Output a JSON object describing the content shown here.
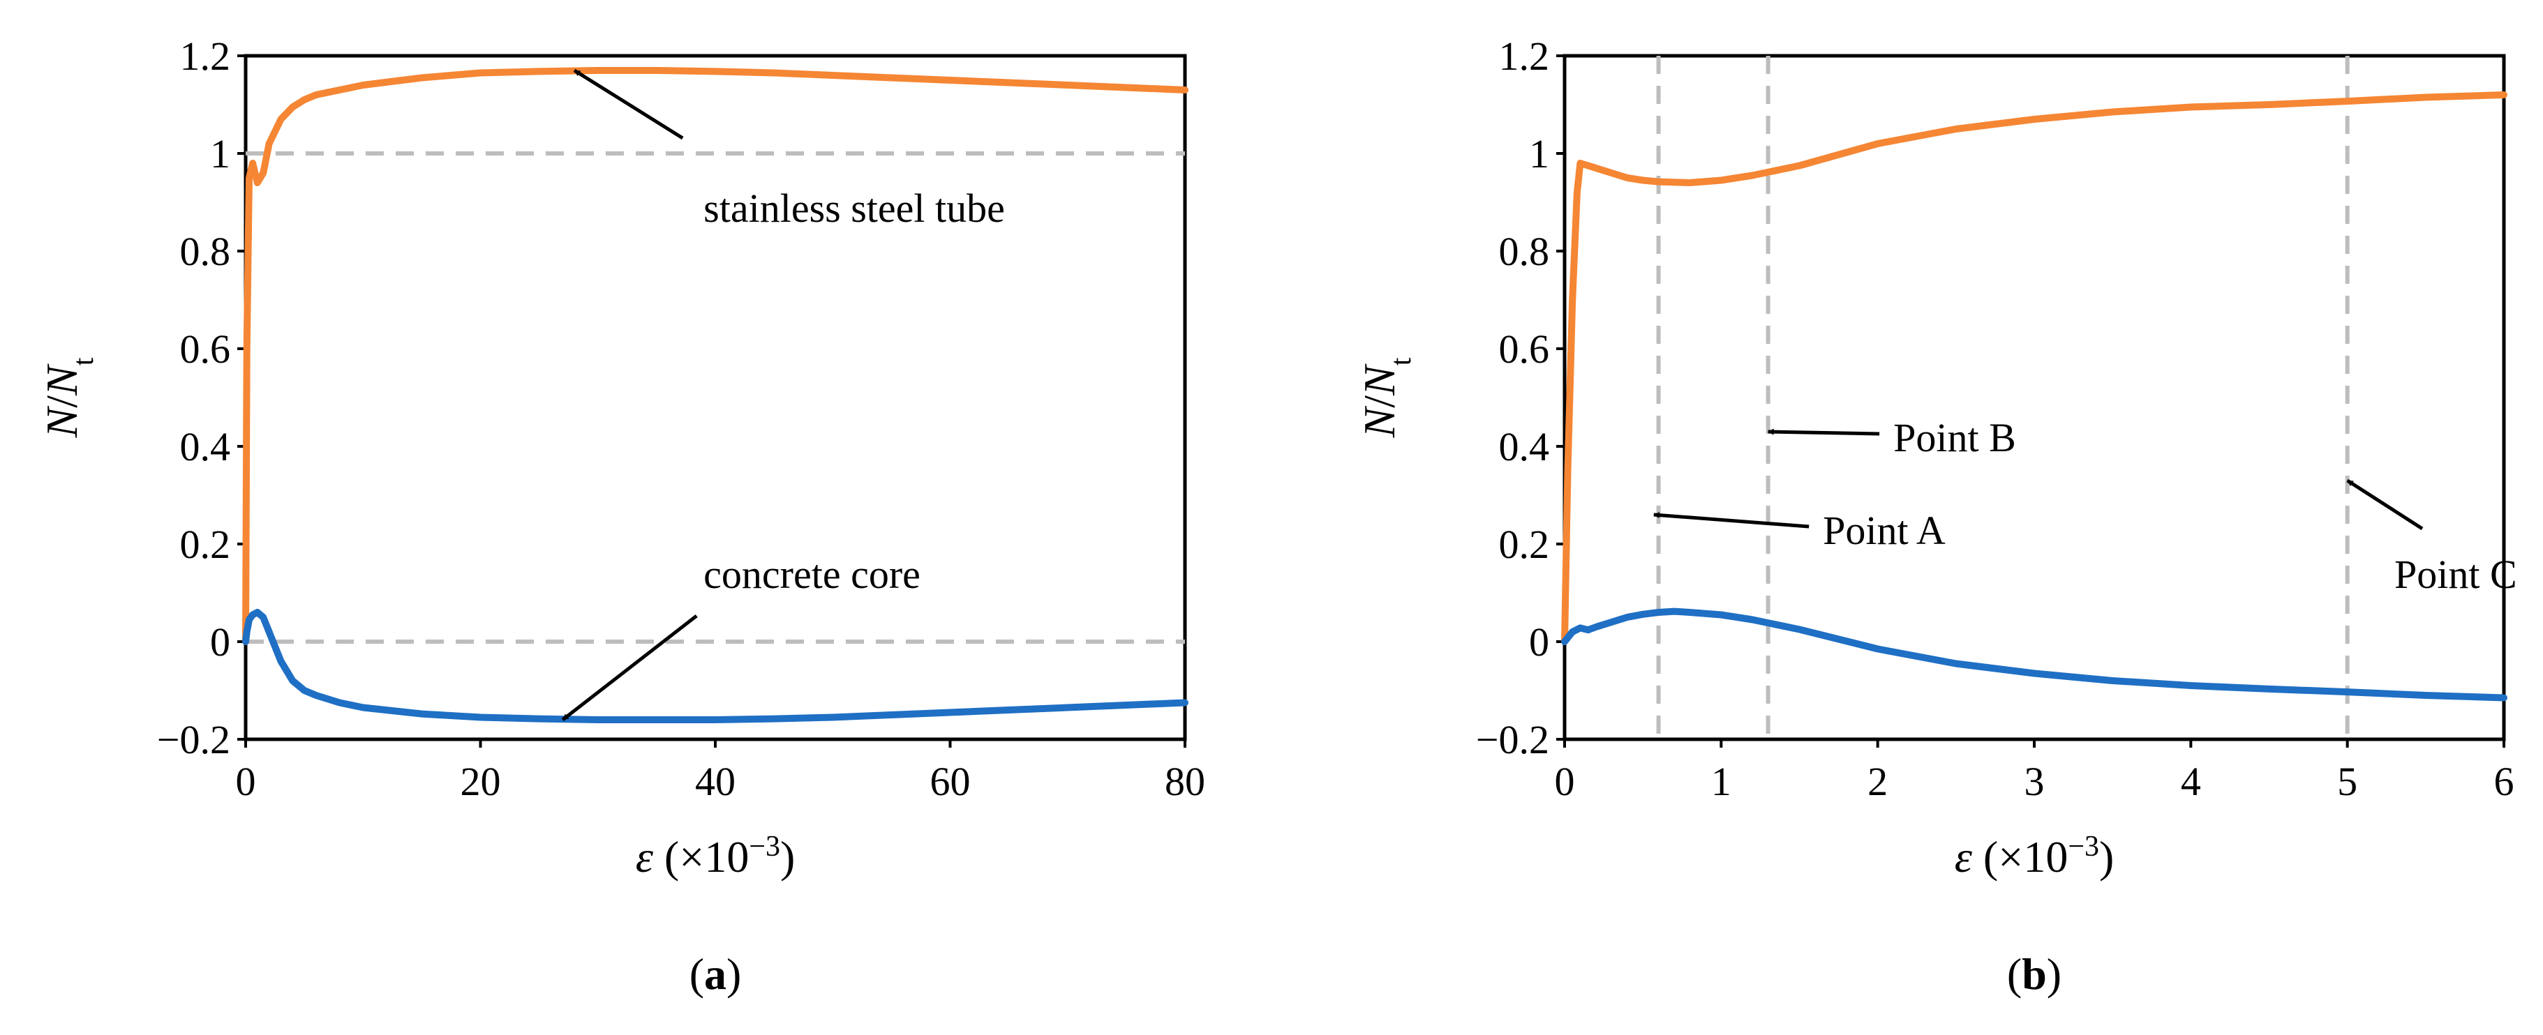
{
  "colors": {
    "steel": "#F58634",
    "concrete": "#1F6FC4",
    "reference": "#BDBDBD",
    "axis": "#000000"
  },
  "chart_data": [
    {
      "type": "line",
      "panel": "(a)",
      "panel_letter": "a",
      "xlabel": "ε (×10−3)",
      "ylabel": "N/Nt",
      "xlim": [
        0,
        80
      ],
      "ylim": [
        -0.2,
        1.2
      ],
      "xticks": [
        0,
        20,
        40,
        60,
        80
      ],
      "yticks": [
        -0.2,
        0,
        0.2,
        0.4,
        0.6,
        0.8,
        1,
        1.2
      ],
      "xtick_labels": [
        "0",
        "20",
        "40",
        "60",
        "80"
      ],
      "ytick_labels": [
        "−0.2",
        "0",
        "0.2",
        "0.4",
        "0.6",
        "0.8",
        "1",
        "1.2"
      ],
      "series": [
        {
          "name": "stainless steel tube",
          "color": "#F58634",
          "x": [
            0,
            0.1,
            0.3,
            0.6,
            1.0,
            1.5,
            2,
            3,
            4,
            5,
            6,
            8,
            10,
            15,
            20,
            25,
            30,
            35,
            40,
            45,
            50,
            55,
            60,
            65,
            70,
            75,
            80
          ],
          "y": [
            0,
            0.6,
            0.95,
            0.98,
            0.94,
            0.96,
            1.02,
            1.07,
            1.095,
            1.11,
            1.12,
            1.13,
            1.14,
            1.155,
            1.165,
            1.168,
            1.17,
            1.17,
            1.168,
            1.165,
            1.16,
            1.155,
            1.15,
            1.145,
            1.14,
            1.135,
            1.13
          ]
        },
        {
          "name": "concrete core",
          "color": "#1F6FC4",
          "x": [
            0,
            0.1,
            0.3,
            0.6,
            1.0,
            1.5,
            2,
            3,
            4,
            5,
            6,
            8,
            10,
            15,
            20,
            25,
            30,
            35,
            40,
            45,
            50,
            55,
            60,
            65,
            70,
            75,
            80
          ],
          "y": [
            0,
            0.02,
            0.045,
            0.055,
            0.06,
            0.05,
            0.02,
            -0.04,
            -0.08,
            -0.1,
            -0.11,
            -0.125,
            -0.135,
            -0.148,
            -0.155,
            -0.158,
            -0.16,
            -0.16,
            -0.16,
            -0.158,
            -0.155,
            -0.15,
            -0.145,
            -0.14,
            -0.135,
            -0.13,
            -0.125
          ]
        }
      ],
      "reference_lines": [
        {
          "orientation": "horizontal",
          "value": 1,
          "x_from": 0,
          "x_to": 80
        },
        {
          "orientation": "horizontal",
          "value": 0,
          "x_from": 0,
          "x_to": 80
        }
      ],
      "annotations": [
        {
          "text": "stainless steel tube",
          "point_x": 28,
          "point_y": 1.17,
          "text_x": 39,
          "text_y": 0.86
        },
        {
          "text": "concrete core",
          "point_x": 27,
          "point_y": -0.16,
          "text_x": 39,
          "text_y": 0.11
        }
      ]
    },
    {
      "type": "line",
      "panel": "(b)",
      "panel_letter": "b",
      "xlabel": "ε (×10−3)",
      "ylabel": "N/Nt",
      "xlim": [
        0,
        6
      ],
      "ylim": [
        -0.2,
        1.2
      ],
      "xticks": [
        0,
        1,
        2,
        3,
        4,
        5,
        6
      ],
      "yticks": [
        -0.2,
        0,
        0.2,
        0.4,
        0.6,
        0.8,
        1,
        1.2
      ],
      "xtick_labels": [
        "0",
        "1",
        "2",
        "3",
        "4",
        "5",
        "6"
      ],
      "ytick_labels": [
        "−0.2",
        "0",
        "0.2",
        "0.4",
        "0.6",
        "0.8",
        "1",
        "1.2"
      ],
      "series": [
        {
          "name": "stainless steel tube",
          "color": "#F58634",
          "x": [
            0,
            0.02,
            0.05,
            0.08,
            0.1,
            0.15,
            0.2,
            0.3,
            0.4,
            0.5,
            0.6,
            0.8,
            1.0,
            1.2,
            1.5,
            2.0,
            2.5,
            3.0,
            3.5,
            4.0,
            4.5,
            5.0,
            5.5,
            6.0
          ],
          "y": [
            0,
            0.35,
            0.7,
            0.92,
            0.98,
            0.975,
            0.97,
            0.96,
            0.95,
            0.945,
            0.942,
            0.94,
            0.945,
            0.955,
            0.975,
            1.02,
            1.05,
            1.07,
            1.085,
            1.095,
            1.1,
            1.107,
            1.115,
            1.12
          ]
        },
        {
          "name": "concrete core",
          "color": "#1F6FC4",
          "x": [
            0,
            0.05,
            0.1,
            0.15,
            0.2,
            0.3,
            0.4,
            0.5,
            0.6,
            0.7,
            0.8,
            1.0,
            1.2,
            1.5,
            2.0,
            2.5,
            3.0,
            3.5,
            4.0,
            4.5,
            5.0,
            5.5,
            6.0
          ],
          "y": [
            0,
            0.02,
            0.028,
            0.024,
            0.03,
            0.04,
            0.05,
            0.056,
            0.06,
            0.062,
            0.06,
            0.055,
            0.045,
            0.025,
            -0.015,
            -0.045,
            -0.065,
            -0.08,
            -0.09,
            -0.097,
            -0.103,
            -0.11,
            -0.115
          ]
        }
      ],
      "reference_lines": [
        {
          "orientation": "vertical",
          "value": 0.6
        },
        {
          "orientation": "vertical",
          "value": 1.3
        },
        {
          "orientation": "vertical",
          "value": 5.0
        }
      ],
      "annotations": [
        {
          "text": "Point A",
          "point_x": 0.57,
          "point_y": 0.26,
          "text_x": 1.65,
          "text_y": 0.2
        },
        {
          "text": "Point B",
          "point_x": 1.3,
          "point_y": 0.43,
          "text_x": 2.1,
          "text_y": 0.39
        },
        {
          "text": "Point C",
          "point_x": 5.0,
          "point_y": 0.33,
          "text_x": 5.3,
          "text_y": 0.11
        }
      ]
    }
  ]
}
